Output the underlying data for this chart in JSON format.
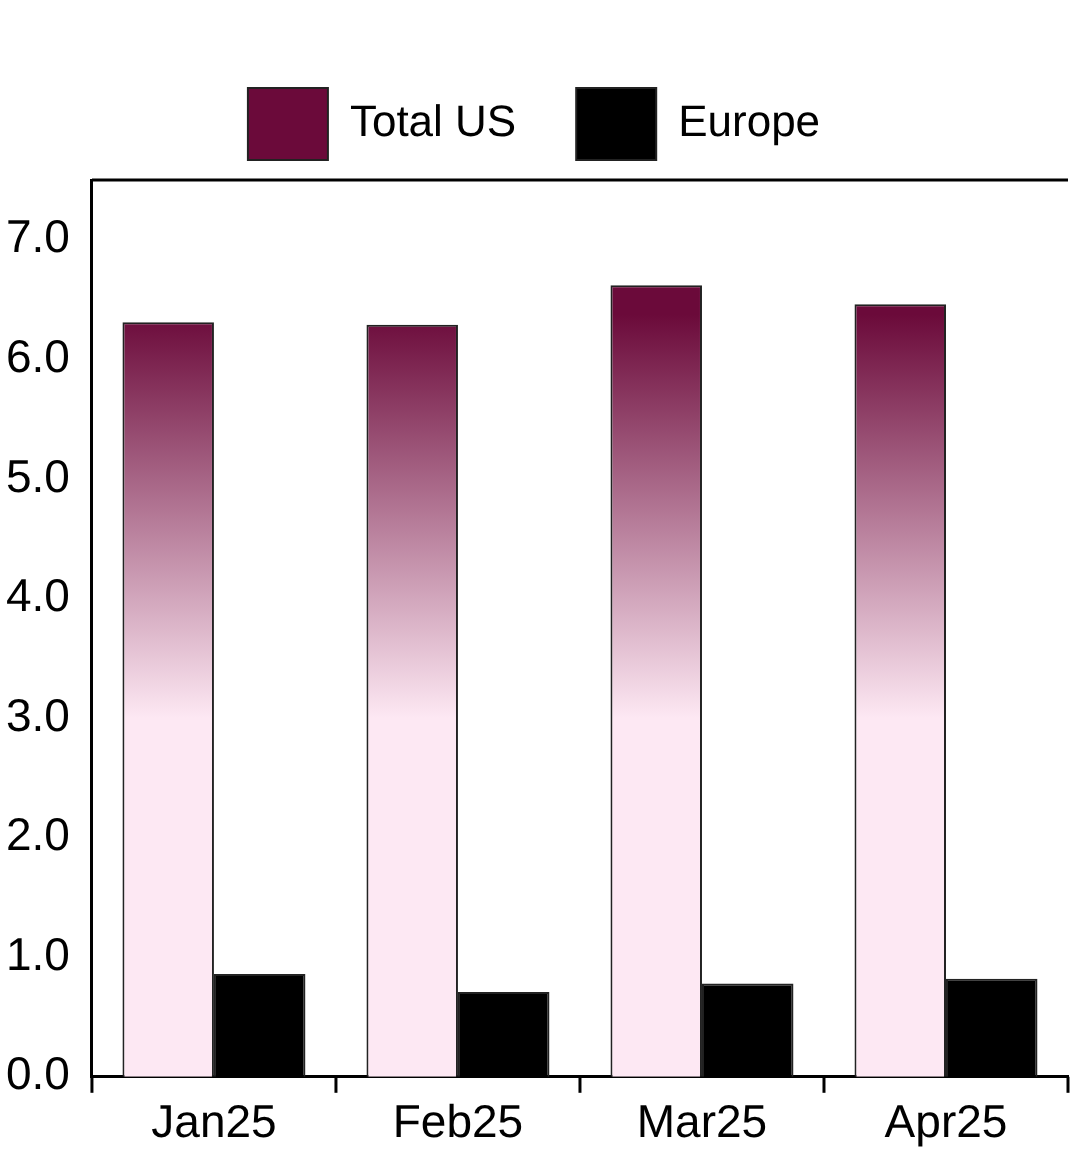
{
  "chart_data": {
    "type": "bar",
    "categories": [
      "Jan25",
      "Feb25",
      "Mar25",
      "Apr25"
    ],
    "series": [
      {
        "name": "Total US",
        "color": "#6b0a3a",
        "values": [
          6.31,
          6.29,
          6.62,
          6.46
        ]
      },
      {
        "name": "Europe",
        "color": "#000000",
        "values": [
          0.86,
          0.71,
          0.78,
          0.82
        ]
      }
    ],
    "ylim": [
      0,
      7.5
    ],
    "yticks": [
      {
        "value": 0,
        "label": "0.0"
      },
      {
        "value": 1,
        "label": "1.0"
      },
      {
        "value": 2,
        "label": "2.0"
      },
      {
        "value": 3,
        "label": "3.0"
      },
      {
        "value": 4,
        "label": "4.0"
      },
      {
        "value": 5,
        "label": "5.0"
      },
      {
        "value": 6,
        "label": "6.0"
      },
      {
        "value": 7,
        "label": "7.0"
      }
    ],
    "grid": false,
    "legend": "top"
  }
}
